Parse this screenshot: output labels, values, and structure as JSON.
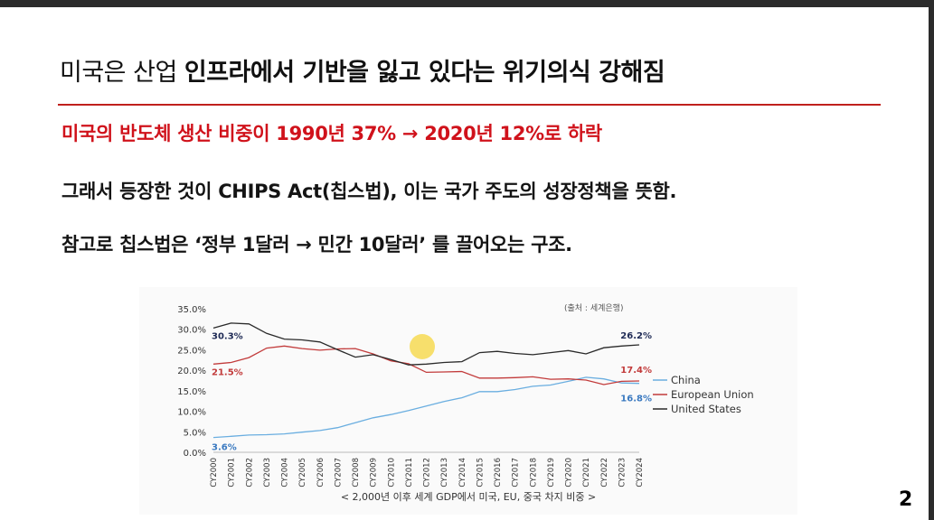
{
  "slide": {
    "title_light": "미국은 산업 ",
    "title_bold": "인프라에서 기반을 잃고 있다는 위기의식 강해짐",
    "line1": "미국의 반도체 생산 비중이 1990년 37% → 2020년 12%로 하락",
    "line2": "그래서 등장한 것이 CHIPS Act(칩스법), 이는 국가 주도의 성장정책을 뜻함.",
    "line3": "참고로 칩스법은   ‘정부 1달러 → 민간 10달러’ 를 끌어오는 구조.",
    "page_number": "2",
    "accent_color": "#d0121b"
  },
  "chart_data": {
    "type": "line",
    "source_note": "(출처 : 세계은행)",
    "caption": "< 2,000년 이후 세계 GDP에서 미국, EU, 중국 차지 비중 >",
    "ylim": [
      0,
      35
    ],
    "ytick_labels": [
      "35.0%",
      "30.0%",
      "25.0%",
      "20.0%",
      "15.0%",
      "10.0%",
      "5.0%",
      "0.0%"
    ],
    "categories": [
      "CY2000",
      "CY2001",
      "CY2002",
      "CY2003",
      "CY2004",
      "CY2005",
      "CY2006",
      "CY2007",
      "CY2008",
      "CY2009",
      "CY2010",
      "CY2011",
      "CY2012",
      "CY2013",
      "CY2014",
      "CY2015",
      "CY2016",
      "CY2017",
      "CY2018",
      "CY2019",
      "CY2020",
      "CY2021",
      "CY2022",
      "CY2023",
      "CY2024"
    ],
    "series": [
      {
        "name": "China",
        "color": "#6aaee0",
        "values": [
          3.6,
          3.9,
          4.2,
          4.3,
          4.5,
          4.9,
          5.3,
          6.0,
          7.2,
          8.4,
          9.2,
          10.2,
          11.3,
          12.4,
          13.3,
          14.8,
          14.8,
          15.3,
          16.1,
          16.4,
          17.3,
          18.3,
          17.9,
          16.9,
          16.8
        ]
      },
      {
        "name": "European Union",
        "color": "#c23b3b",
        "values": [
          21.5,
          21.9,
          23.1,
          25.4,
          25.9,
          25.3,
          24.9,
          25.2,
          25.3,
          24.0,
          22.3,
          21.6,
          19.5,
          19.6,
          19.7,
          18.1,
          18.1,
          18.2,
          18.4,
          17.8,
          17.9,
          17.6,
          16.5,
          17.3,
          17.4
        ]
      },
      {
        "name": "United States",
        "color": "#2a2a2a",
        "values": [
          30.3,
          31.5,
          31.3,
          29.0,
          27.6,
          27.4,
          26.9,
          25.0,
          23.2,
          23.8,
          22.6,
          21.3,
          21.5,
          21.9,
          22.1,
          24.3,
          24.6,
          24.1,
          23.8,
          24.3,
          24.8,
          24.0,
          25.5,
          25.9,
          26.2
        ]
      }
    ],
    "annotations": [
      {
        "text": "30.3%",
        "color": "#1e2a55"
      },
      {
        "text": "21.5%",
        "color": "#c23b3b"
      },
      {
        "text": "3.6%",
        "color": "#3a79c0"
      },
      {
        "text": "26.2%",
        "color": "#1e2a55"
      },
      {
        "text": "17.4%",
        "color": "#c23b3b"
      },
      {
        "text": "16.8%",
        "color": "#3a79c0"
      }
    ],
    "legend_position": "right"
  }
}
